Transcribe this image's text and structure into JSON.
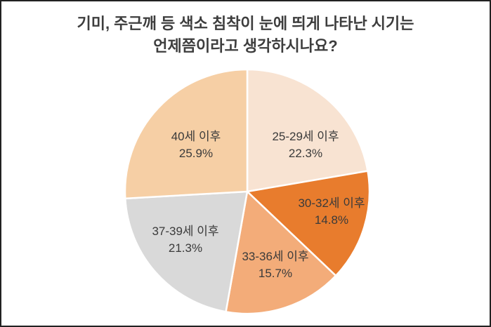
{
  "colors": {
    "text": "#3a3a3a",
    "title_text": "#3d3d3d",
    "slice_border": "#ffffff",
    "frame_border": "#222222",
    "background": "#ffffff"
  },
  "chart_data": {
    "type": "pie",
    "title": "기미, 주근깨 등 색소 침착이 눈에 띄게 나타난 시기는 언제쯤이라고 생각하시나요?",
    "title_lines": [
      "기미, 주근깨 등 색소 침착이 눈에 띄게 나타난 시기는",
      "언제쯤이라고 생각하시나요?"
    ],
    "unit": "%",
    "start_angle_deg": 0,
    "direction": "clockwise",
    "legend": "none",
    "labels_position": "inside",
    "slices": [
      {
        "label": "25-29세 이후",
        "value": 22.3,
        "display": "22.3%",
        "color": "#f8e3d2"
      },
      {
        "label": "30-32세 이후",
        "value": 14.8,
        "display": "14.8%",
        "color": "#e87c2d"
      },
      {
        "label": "33-36세 이후",
        "value": 15.7,
        "display": "15.7%",
        "color": "#f3ac79"
      },
      {
        "label": "37-39세 이후",
        "value": 21.3,
        "display": "21.3%",
        "color": "#d9d9d9"
      },
      {
        "label": "40세 이후",
        "value": 25.9,
        "display": "25.9%",
        "color": "#f6cfa5"
      }
    ]
  }
}
